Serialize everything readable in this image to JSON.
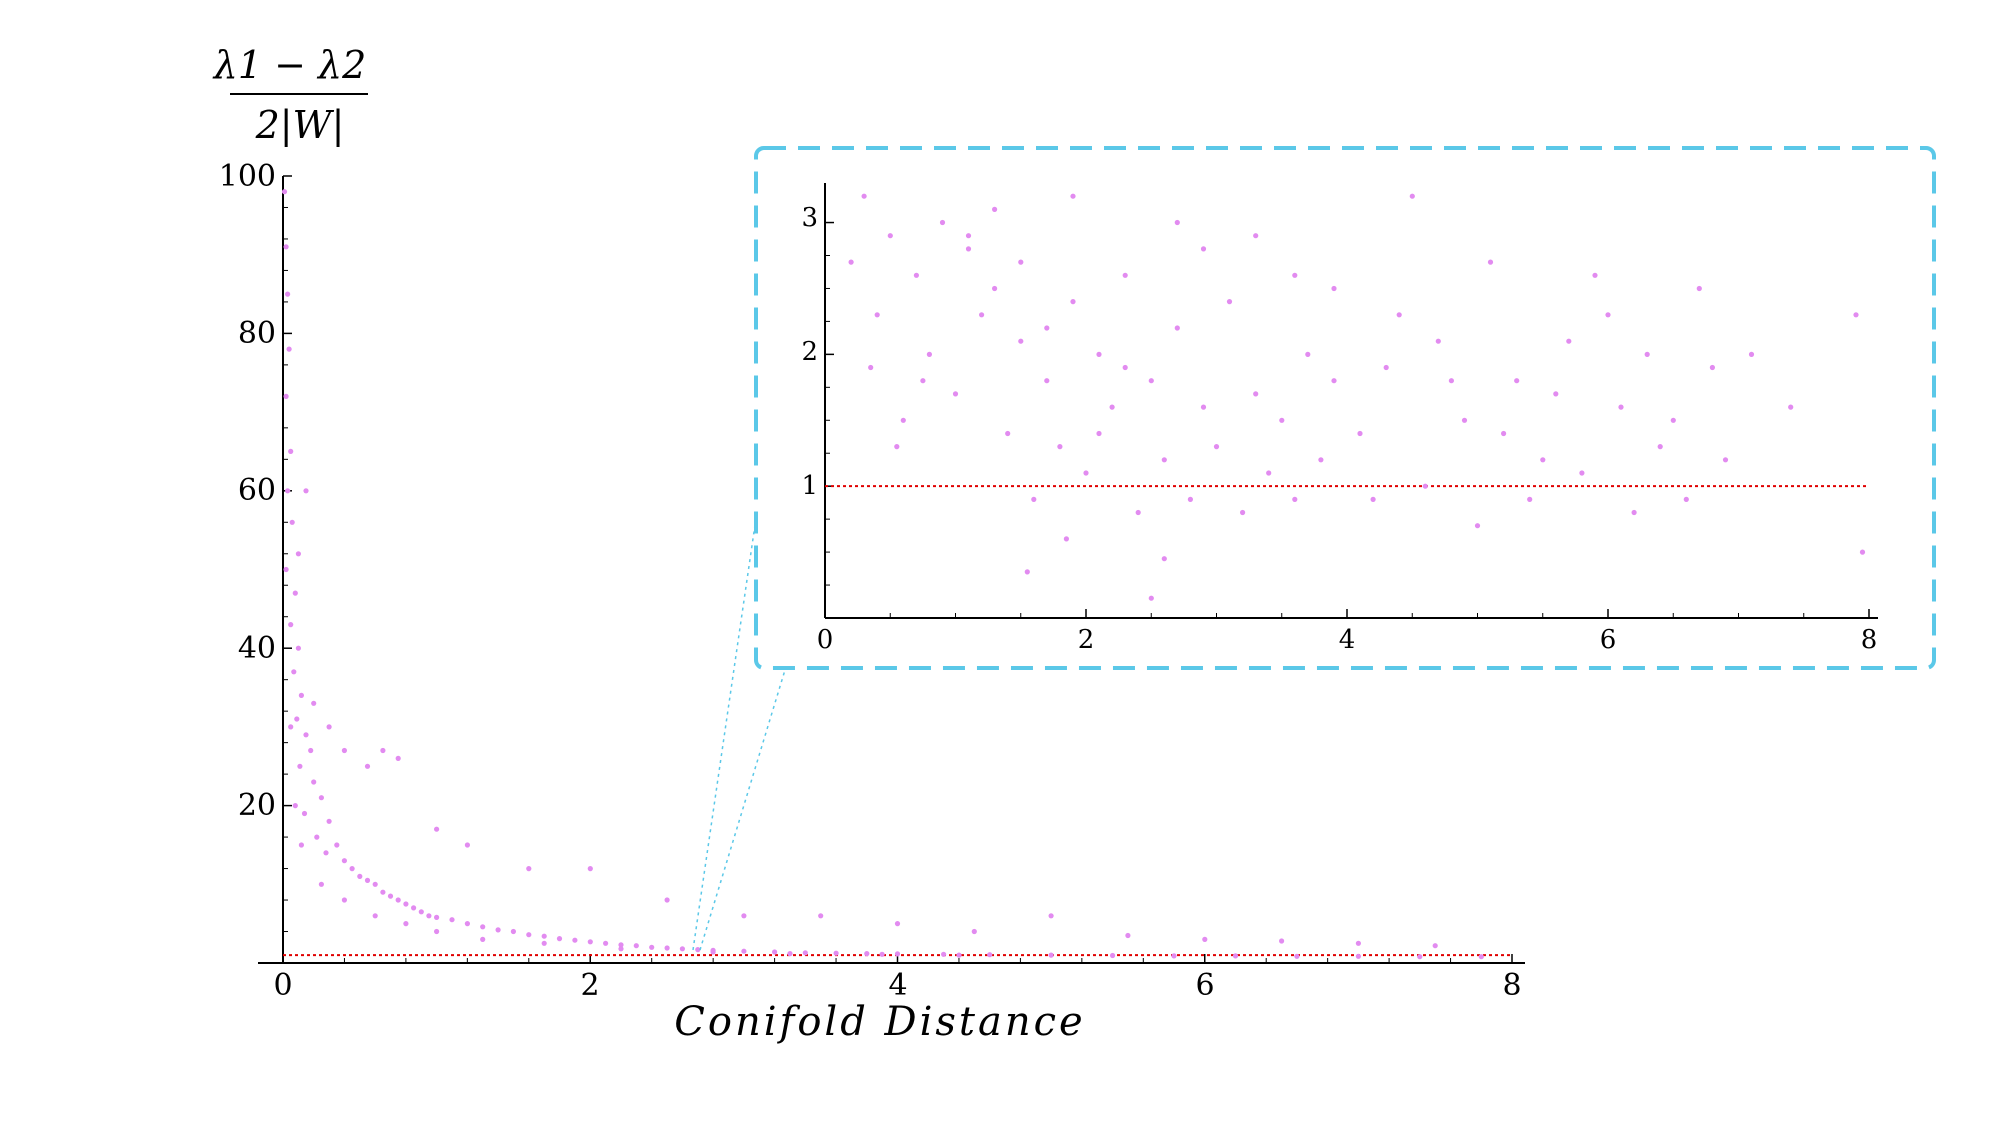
{
  "chart_data": [
    {
      "id": "main",
      "type": "scatter",
      "xlabel": "Conifold Distance",
      "ylabel": {
        "numerator": "λ1 − λ2",
        "denominator": "2|W|"
      },
      "xlim": [
        0,
        8
      ],
      "ylim": [
        0,
        100
      ],
      "x_ticks": [
        "0",
        "2",
        "4",
        "6",
        "8"
      ],
      "y_ticks": [
        "20",
        "40",
        "60",
        "80",
        "100"
      ],
      "grid": false,
      "reference_line": {
        "y": 1
      },
      "point_color": "#e28bf0",
      "reference_color": "#e00000",
      "series": [
        {
          "points": [
            [
              0.01,
              98
            ],
            [
              0.02,
              91
            ],
            [
              0.03,
              85
            ],
            [
              0.04,
              78
            ],
            [
              0.02,
              72
            ],
            [
              0.05,
              65
            ],
            [
              0.03,
              60
            ],
            [
              0.06,
              56
            ],
            [
              0.02,
              50
            ],
            [
              0.08,
              47
            ],
            [
              0.05,
              43
            ],
            [
              0.1,
              40
            ],
            [
              0.07,
              37
            ],
            [
              0.12,
              34
            ],
            [
              0.09,
              31
            ],
            [
              0.15,
              29
            ],
            [
              0.18,
              27
            ],
            [
              0.11,
              25
            ],
            [
              0.2,
              23
            ],
            [
              0.25,
              21
            ],
            [
              0.14,
              19
            ],
            [
              0.3,
              18
            ],
            [
              0.22,
              16
            ],
            [
              0.35,
              15
            ],
            [
              0.28,
              14
            ],
            [
              0.4,
              13
            ],
            [
              0.45,
              12
            ],
            [
              0.5,
              11
            ],
            [
              0.55,
              10.5
            ],
            [
              0.6,
              10
            ],
            [
              0.65,
              9
            ],
            [
              0.7,
              8.5
            ],
            [
              0.75,
              8
            ],
            [
              0.8,
              7.5
            ],
            [
              0.85,
              7
            ],
            [
              0.9,
              6.5
            ],
            [
              0.95,
              6
            ],
            [
              1.0,
              5.8
            ],
            [
              1.1,
              5.5
            ],
            [
              1.2,
              5
            ],
            [
              1.3,
              4.6
            ],
            [
              1.4,
              4.2
            ],
            [
              1.5,
              4
            ],
            [
              1.6,
              3.6
            ],
            [
              1.7,
              3.4
            ],
            [
              1.8,
              3.1
            ],
            [
              1.9,
              2.9
            ],
            [
              2.0,
              2.7
            ],
            [
              2.1,
              2.5
            ],
            [
              2.2,
              2.3
            ],
            [
              2.3,
              2.2
            ],
            [
              2.4,
              2.0
            ],
            [
              2.5,
              1.9
            ],
            [
              2.6,
              1.8
            ],
            [
              2.7,
              1.7
            ],
            [
              2.8,
              1.6
            ],
            [
              3.0,
              1.5
            ],
            [
              3.2,
              1.4
            ],
            [
              3.4,
              1.3
            ],
            [
              3.6,
              1.25
            ],
            [
              3.8,
              1.2
            ],
            [
              4.0,
              1.15
            ],
            [
              4.3,
              1.1
            ],
            [
              4.6,
              1.05
            ],
            [
              5.0,
              1.0
            ],
            [
              5.4,
              0.95
            ],
            [
              5.8,
              0.9
            ],
            [
              6.2,
              0.9
            ],
            [
              6.6,
              0.85
            ],
            [
              7.0,
              0.85
            ],
            [
              7.4,
              0.8
            ],
            [
              7.8,
              0.8
            ],
            [
              0.15,
              60
            ],
            [
              0.1,
              52
            ],
            [
              0.2,
              33
            ],
            [
              0.3,
              30
            ],
            [
              0.4,
              27
            ],
            [
              0.55,
              25
            ],
            [
              0.65,
              27
            ],
            [
              0.75,
              26
            ],
            [
              1.0,
              17
            ],
            [
              1.2,
              15
            ],
            [
              1.6,
              12
            ],
            [
              2.0,
              12
            ],
            [
              2.5,
              8
            ],
            [
              3.0,
              6
            ],
            [
              3.5,
              6
            ],
            [
              4.0,
              5
            ],
            [
              4.5,
              4
            ],
            [
              5.0,
              6
            ],
            [
              5.5,
              3.5
            ],
            [
              6.0,
              3
            ],
            [
              6.5,
              2.8
            ],
            [
              7.0,
              2.5
            ],
            [
              7.5,
              2.2
            ],
            [
              0.05,
              30
            ],
            [
              0.08,
              20
            ],
            [
              0.12,
              15
            ],
            [
              0.25,
              10
            ],
            [
              0.4,
              8
            ],
            [
              0.6,
              6
            ],
            [
              0.8,
              5
            ],
            [
              1.0,
              4
            ],
            [
              1.3,
              3
            ],
            [
              1.7,
              2.5
            ],
            [
              2.2,
              1.8
            ],
            [
              2.8,
              1.4
            ],
            [
              3.3,
              1.2
            ],
            [
              3.9,
              1.1
            ],
            [
              4.4,
              1.0
            ]
          ]
        }
      ]
    },
    {
      "id": "inset",
      "type": "scatter",
      "xlim": [
        0,
        8
      ],
      "ylim": [
        0,
        3.3
      ],
      "x_ticks": [
        "0",
        "2",
        "4",
        "6",
        "8"
      ],
      "y_ticks": [
        "1",
        "2",
        "3"
      ],
      "grid": false,
      "reference_line": {
        "y": 1
      },
      "point_color": "#e28bf0",
      "reference_color": "#e00000",
      "frame_color": "#5bc8e8",
      "series": [
        {
          "points": [
            [
              0.3,
              3.2
            ],
            [
              0.5,
              2.9
            ],
            [
              0.7,
              2.6
            ],
            [
              0.9,
              3.0
            ],
            [
              1.1,
              2.8
            ],
            [
              1.3,
              2.5
            ],
            [
              1.5,
              2.7
            ],
            [
              1.7,
              2.2
            ],
            [
              1.9,
              2.4
            ],
            [
              2.1,
              2.0
            ],
            [
              2.3,
              2.6
            ],
            [
              2.5,
              1.8
            ],
            [
              2.7,
              2.2
            ],
            [
              2.9,
              1.6
            ],
            [
              3.1,
              2.4
            ],
            [
              3.3,
              2.9
            ],
            [
              3.5,
              1.5
            ],
            [
              3.7,
              2.0
            ],
            [
              3.9,
              2.5
            ],
            [
              4.1,
              1.4
            ],
            [
              4.3,
              1.9
            ],
            [
              4.5,
              3.2
            ],
            [
              4.7,
              2.1
            ],
            [
              4.9,
              1.5
            ],
            [
              5.1,
              2.7
            ],
            [
              5.3,
              1.8
            ],
            [
              5.5,
              1.2
            ],
            [
              5.7,
              2.1
            ],
            [
              5.9,
              2.6
            ],
            [
              6.1,
              1.6
            ],
            [
              6.3,
              2.0
            ],
            [
              6.5,
              1.5
            ],
            [
              6.7,
              2.5
            ],
            [
              6.9,
              1.2
            ],
            [
              7.1,
              2.0
            ],
            [
              7.4,
              1.6
            ],
            [
              7.9,
              2.3
            ],
            [
              7.95,
              0.5
            ],
            [
              0.4,
              2.3
            ],
            [
              0.6,
              1.5
            ],
            [
              0.8,
              2.0
            ],
            [
              1.0,
              1.7
            ],
            [
              1.2,
              2.3
            ],
            [
              1.4,
              1.4
            ],
            [
              1.6,
              0.9
            ],
            [
              1.8,
              1.3
            ],
            [
              2.0,
              1.1
            ],
            [
              2.2,
              1.6
            ],
            [
              2.4,
              0.8
            ],
            [
              2.6,
              1.2
            ],
            [
              2.8,
              0.9
            ],
            [
              3.0,
              1.3
            ],
            [
              3.2,
              0.8
            ],
            [
              3.4,
              1.1
            ],
            [
              3.6,
              0.9
            ],
            [
              3.8,
              1.2
            ],
            [
              4.2,
              0.9
            ],
            [
              4.6,
              1.0
            ],
            [
              5.0,
              0.7
            ],
            [
              5.4,
              0.9
            ],
            [
              5.8,
              1.1
            ],
            [
              6.2,
              0.8
            ],
            [
              6.6,
              0.9
            ],
            [
              1.55,
              0.35
            ],
            [
              1.85,
              0.6
            ],
            [
              2.5,
              0.15
            ],
            [
              2.6,
              0.45
            ],
            [
              1.9,
              3.2
            ],
            [
              2.7,
              3.0
            ],
            [
              3.6,
              2.6
            ],
            [
              1.1,
              2.9
            ],
            [
              1.3,
              3.1
            ],
            [
              1.5,
              2.1
            ],
            [
              1.7,
              1.8
            ],
            [
              2.1,
              1.4
            ],
            [
              2.3,
              1.9
            ],
            [
              2.9,
              2.8
            ],
            [
              3.3,
              1.7
            ],
            [
              3.9,
              1.8
            ],
            [
              4.4,
              2.3
            ],
            [
              4.8,
              1.8
            ],
            [
              5.2,
              1.4
            ],
            [
              5.6,
              1.7
            ],
            [
              6.0,
              2.3
            ],
            [
              6.4,
              1.3
            ],
            [
              6.8,
              1.9
            ],
            [
              0.2,
              2.7
            ],
            [
              0.35,
              1.9
            ],
            [
              0.55,
              1.3
            ],
            [
              0.75,
              1.8
            ]
          ]
        }
      ]
    }
  ]
}
